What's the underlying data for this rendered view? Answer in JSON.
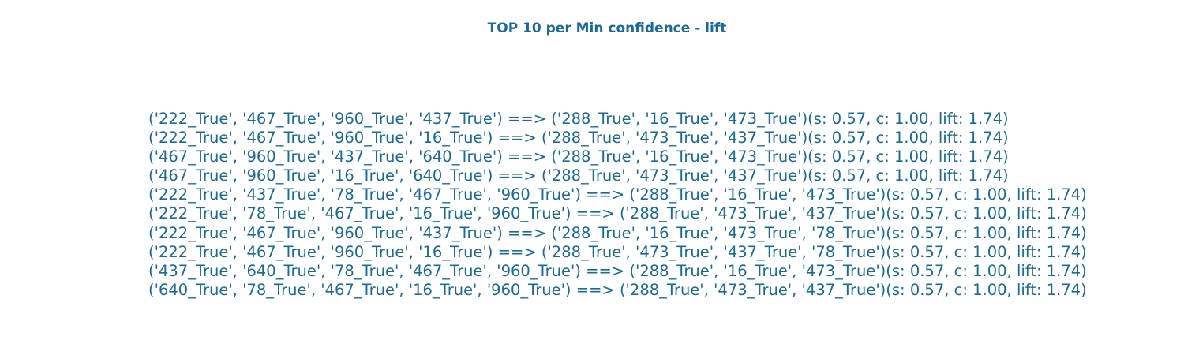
{
  "title": "TOP 10 per Min confidence - lift",
  "colors": {
    "text": "#1a6b96",
    "background": "#ffffff"
  },
  "rules": [
    "('222_True', '467_True', '960_True', '437_True') ==> ('288_True', '16_True', '473_True')(s: 0.57, c: 1.00, lift: 1.74)",
    "('222_True', '467_True', '960_True', '16_True') ==> ('288_True', '473_True', '437_True')(s: 0.57, c: 1.00, lift: 1.74)",
    "('467_True', '960_True', '437_True', '640_True') ==> ('288_True', '16_True', '473_True')(s: 0.57, c: 1.00, lift: 1.74)",
    "('467_True', '960_True', '16_True', '640_True') ==> ('288_True', '473_True', '437_True')(s: 0.57, c: 1.00, lift: 1.74)",
    "('222_True', '437_True', '78_True', '467_True', '960_True') ==> ('288_True', '16_True', '473_True')(s: 0.57, c: 1.00, lift: 1.74)",
    "('222_True', '78_True', '467_True', '16_True', '960_True') ==> ('288_True', '473_True', '437_True')(s: 0.57, c: 1.00, lift: 1.74)",
    "('222_True', '467_True', '960_True', '437_True') ==> ('288_True', '16_True', '473_True', '78_True')(s: 0.57, c: 1.00, lift: 1.74)",
    "('222_True', '467_True', '960_True', '16_True') ==> ('288_True', '473_True', '437_True', '78_True')(s: 0.57, c: 1.00, lift: 1.74)",
    "('437_True', '640_True', '78_True', '467_True', '960_True') ==> ('288_True', '16_True', '473_True')(s: 0.57, c: 1.00, lift: 1.74)",
    "('640_True', '78_True', '467_True', '16_True', '960_True') ==> ('288_True', '473_True', '437_True')(s: 0.57, c: 1.00, lift: 1.74)"
  ]
}
